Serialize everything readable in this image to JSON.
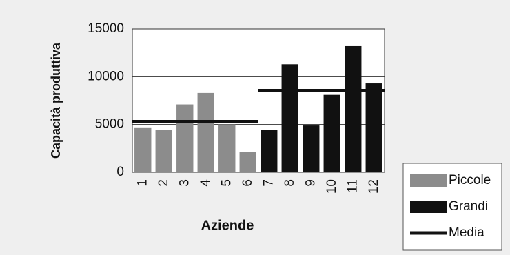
{
  "chart_data": {
    "type": "bar",
    "categories": [
      "1",
      "2",
      "3",
      "4",
      "5",
      "6",
      "7",
      "8",
      "9",
      "10",
      "11",
      "12"
    ],
    "x_label": "Aziende",
    "y_label": "Capacità produttiva",
    "series": [
      {
        "name": "Piccole",
        "color": "#8c8c8c",
        "kind": "bar",
        "values": [
          4700,
          4400,
          7100,
          8300,
          5000,
          2100,
          null,
          null,
          null,
          null,
          null,
          null
        ]
      },
      {
        "name": "Grandi",
        "color": "#111111",
        "kind": "bar",
        "values": [
          null,
          null,
          null,
          null,
          null,
          null,
          4400,
          11300,
          4900,
          8100,
          13200,
          9300
        ]
      },
      {
        "name": "Media",
        "color": "#111111",
        "kind": "line",
        "values": [
          5300,
          5300,
          5300,
          5300,
          5300,
          5300,
          8550,
          8550,
          8550,
          8550,
          8550,
          8550
        ]
      }
    ],
    "ylim": [
      0,
      15000
    ],
    "yticks": [
      0,
      5000,
      10000,
      15000
    ],
    "grid": true
  }
}
